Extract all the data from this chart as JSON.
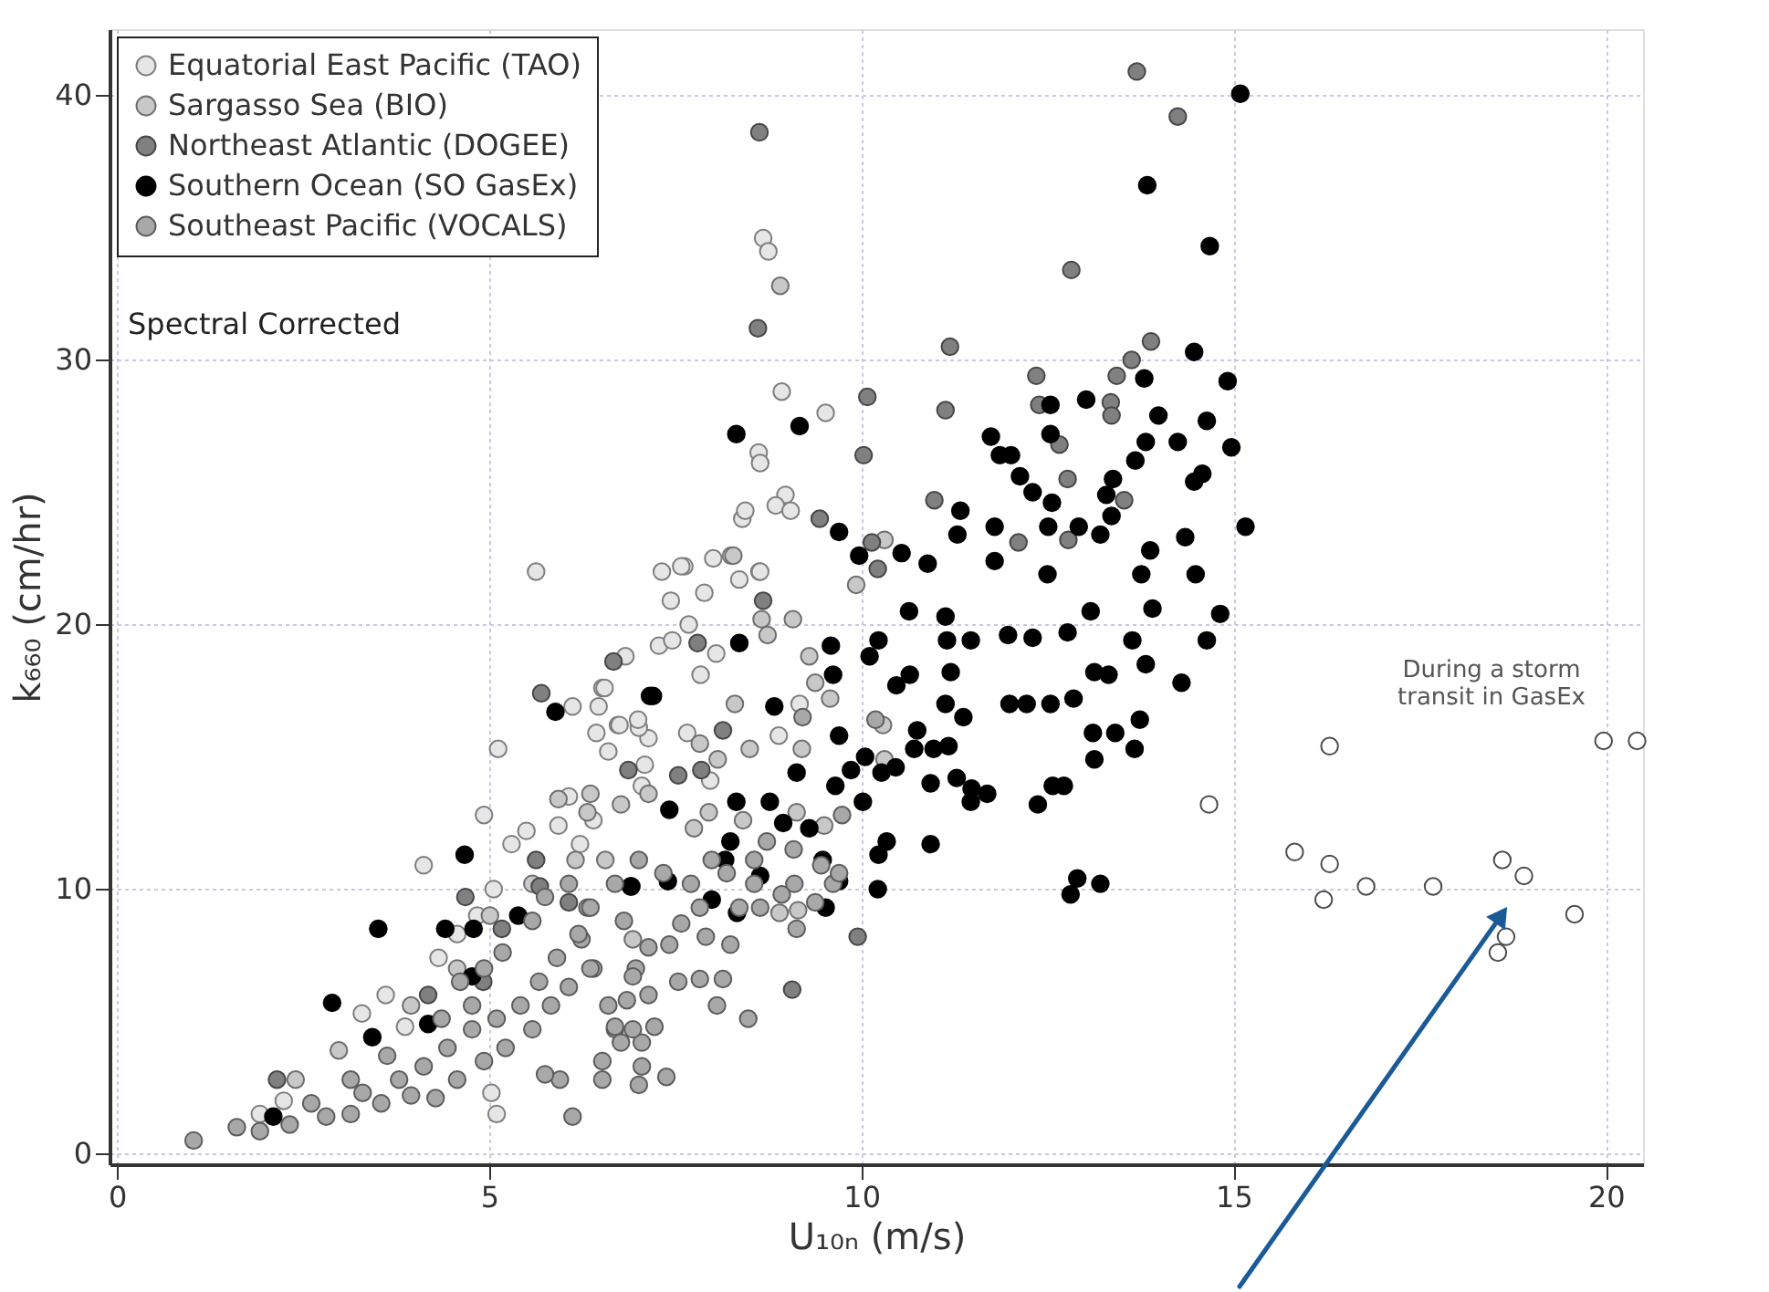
{
  "chart_data": {
    "type": "scatter",
    "xlabel": "U₁₀ₙ (m/s)",
    "ylabel": "k₆₆₀ (cm/hr)",
    "xlim": [
      -0.1,
      20.5
    ],
    "ylim": [
      -0.4,
      42.5
    ],
    "xticks": [
      0,
      5,
      10,
      15,
      20
    ],
    "yticks": [
      0,
      10,
      20,
      30,
      40
    ],
    "grid": true,
    "legend": "top left",
    "marker": "circle",
    "annotations": [
      "Spectral Corrected",
      "During a storm\ntransit in GasEx"
    ],
    "series": [
      {
        "name": "Equatorial East Pacific (TAO)",
        "color": "#e6e6e6",
        "x": [
          8.68,
          8.75,
          8.93,
          9.52,
          8.62,
          8.64,
          8.98,
          8.85,
          9.05,
          8.4,
          8.44,
          8.01,
          8.63,
          7.62,
          5.63,
          7.32,
          7.58,
          8.25,
          8.64,
          7.44,
          7.89,
          8.36,
          7.28,
          6.83,
          7.68,
          8.05,
          7.46,
          7.84,
          6.52,
          6.73,
          7.14,
          7.66,
          6.44,
          6.6,
          7.09,
          9.17,
          8.89,
          7.97,
          6.12,
          7.01,
          5.12,
          4.93,
          5.5,
          5.3,
          6.55,
          6.47,
          6.75,
          7.0,
          4.12,
          3.61,
          3.29,
          3.87,
          5.1,
          5.03,
          5.06,
          5.93,
          6.07,
          6.22,
          6.4,
          7.05,
          4.84,
          4.57,
          4.32,
          1.92,
          2.24
        ],
        "values": [
          34.6,
          34.1,
          28.8,
          28.0,
          26.5,
          26.1,
          24.9,
          24.5,
          24.3,
          24.0,
          24.3,
          22.5,
          22.0,
          22.2,
          22.0,
          22.0,
          22.2,
          22.6,
          22.0,
          20.9,
          21.2,
          21.7,
          19.2,
          18.8,
          20.0,
          18.9,
          19.4,
          18.1,
          17.6,
          16.2,
          15.7,
          15.9,
          15.9,
          15.2,
          14.7,
          17.0,
          15.8,
          14.1,
          16.9,
          16.1,
          15.3,
          12.8,
          12.2,
          11.7,
          17.6,
          16.9,
          16.2,
          16.4,
          10.9,
          6.0,
          5.3,
          4.8,
          1.5,
          2.3,
          10.0,
          12.4,
          13.5,
          11.7,
          12.6,
          13.9,
          9.0,
          8.3,
          7.4,
          1.5,
          2.0
        ]
      },
      {
        "name": "Sargasso Sea (BIO)",
        "color": "#c8c8c8",
        "x": [
          8.91,
          10.31,
          8.28,
          8.66,
          8.74,
          9.08,
          9.3,
          9.38,
          9.58,
          9.93,
          10.29,
          10.31,
          8.3,
          8.5,
          7.83,
          8.07,
          6.36,
          6.77,
          7.14,
          7.75,
          7.95,
          8.41,
          9.13,
          9.5,
          8.9,
          9.15,
          9.2,
          5.93,
          6.32,
          6.56,
          6.16,
          5.58,
          5.01,
          4.57,
          3.95,
          2.98,
          2.4,
          6.93
        ],
        "values": [
          32.8,
          23.2,
          22.6,
          20.2,
          19.6,
          20.2,
          18.8,
          17.8,
          17.2,
          21.5,
          16.2,
          14.9,
          17.0,
          15.3,
          15.5,
          14.9,
          13.6,
          13.2,
          13.6,
          12.3,
          12.9,
          12.6,
          12.9,
          12.4,
          9.1,
          9.2,
          15.3,
          13.4,
          12.9,
          11.1,
          11.1,
          10.2,
          9.0,
          7.0,
          5.6,
          3.9,
          2.8,
          8.1
        ]
      },
      {
        "name": "Northeast Atlantic (DOGEE)",
        "color": "#808080",
        "x": [
          13.7,
          14.25,
          12.82,
          8.63,
          8.61,
          11.19,
          13.89,
          13.63,
          13.43,
          12.35,
          10.08,
          12.39,
          13.35,
          13.36,
          11.13,
          10.03,
          12.66,
          12.77,
          13.53,
          10.98,
          9.44,
          10.14,
          12.11,
          12.78,
          10.22,
          6.67,
          8.68,
          7.8,
          9.95,
          9.07,
          8.14,
          6.87,
          7.54,
          7.85,
          5.7,
          4.68,
          5.63,
          5.17,
          4.18,
          2.15,
          6.07,
          4.92,
          5.68
        ],
        "values": [
          40.9,
          39.2,
          33.4,
          38.6,
          31.2,
          30.5,
          30.7,
          30.0,
          29.4,
          29.4,
          28.6,
          28.3,
          28.4,
          27.9,
          28.1,
          26.4,
          26.8,
          25.5,
          24.7,
          24.7,
          24.0,
          23.1,
          23.1,
          23.2,
          22.1,
          18.6,
          20.9,
          19.3,
          8.2,
          6.2,
          16.0,
          14.5,
          14.3,
          14.5,
          17.4,
          9.7,
          11.1,
          8.5,
          6.0,
          2.8,
          9.5,
          6.5,
          10.1
        ]
      },
      {
        "name": "Southern Ocean (SO GasEx)",
        "color": "#000000",
        "x": [
          15.09,
          13.84,
          14.68,
          14.47,
          13.8,
          14.92,
          12.54,
          13.02,
          13.99,
          14.64,
          8.32,
          9.17,
          11.74,
          12.54,
          13.82,
          14.25,
          14.97,
          11.86,
          12.01,
          13.68,
          12.13,
          13.38,
          14.47,
          14.58,
          12.3,
          13.29,
          12.56,
          11.33,
          13.36,
          9.7,
          11.29,
          11.79,
          12.51,
          12.92,
          13.21,
          15.16,
          14.35,
          9.97,
          10.54,
          10.89,
          11.79,
          13.88,
          13.76,
          14.49,
          12.5,
          5.89,
          7.16,
          4.67,
          3.51,
          4.41,
          4.79,
          2.89,
          5.39,
          6.9,
          4.18,
          3.43,
          2.1,
          4.77,
          7.2,
          8.36,
          8.83,
          9.59,
          10.23,
          10.64,
          11.13,
          11.15,
          11.47,
          11.97,
          12.3,
          12.77,
          13.08,
          13.91,
          14.82,
          14.64,
          13.64,
          9.62,
          10.11,
          10.47,
          10.65,
          11.2,
          11.13,
          11.37,
          11.99,
          12.22,
          12.54,
          12.85,
          13.13,
          13.32,
          13.82,
          14.3,
          13.74,
          13.41,
          13.11,
          13.67,
          13.13,
          10.75,
          10.71,
          10.97,
          11.17,
          9.7,
          10.05,
          9.86,
          10.27,
          10.46,
          10.93,
          11.28,
          11.48,
          11.69,
          11.47,
          12.37,
          12.57,
          12.72,
          10.02,
          9.65,
          9.13,
          8.77,
          8.32,
          9.3,
          8.95,
          8.24,
          10.34,
          10.23,
          10.93,
          8.17,
          8.64,
          9.48,
          9.7,
          10.22,
          9.52,
          8.33,
          6.91,
          7.4,
          7.42,
          7.99,
          12.9,
          12.81,
          13.21
        ],
        "values": [
          40.06,
          36.6,
          34.3,
          30.3,
          29.3,
          29.2,
          28.3,
          28.5,
          27.9,
          27.7,
          27.2,
          27.5,
          27.1,
          27.2,
          26.9,
          26.9,
          26.7,
          26.4,
          26.4,
          26.2,
          25.6,
          25.5,
          25.4,
          25.7,
          25.0,
          24.9,
          24.6,
          24.3,
          24.1,
          23.5,
          23.4,
          23.7,
          23.7,
          23.7,
          23.4,
          23.7,
          23.3,
          22.6,
          22.7,
          22.3,
          22.4,
          22.8,
          21.9,
          21.9,
          21.9,
          16.7,
          17.3,
          11.3,
          8.5,
          8.5,
          8.5,
          5.7,
          9.0,
          10.1,
          4.9,
          4.4,
          1.4,
          6.7,
          17.3,
          19.3,
          16.9,
          19.2,
          19.4,
          20.5,
          20.3,
          19.4,
          19.4,
          19.6,
          19.5,
          19.7,
          20.5,
          20.6,
          20.4,
          19.4,
          19.4,
          18.1,
          18.8,
          17.7,
          18.1,
          18.2,
          17.0,
          16.5,
          17.0,
          17.0,
          17.0,
          17.2,
          18.2,
          18.1,
          18.5,
          17.8,
          16.4,
          15.9,
          15.9,
          15.3,
          14.9,
          16.0,
          15.3,
          15.3,
          15.4,
          15.8,
          15.0,
          14.5,
          14.4,
          14.6,
          14.0,
          14.2,
          13.8,
          13.6,
          13.3,
          13.2,
          13.9,
          13.9,
          13.3,
          13.9,
          14.4,
          13.3,
          13.3,
          12.3,
          12.5,
          11.8,
          11.8,
          11.3,
          11.7,
          11.1,
          10.5,
          11.1,
          10.3,
          10.0,
          9.3,
          9.1,
          10.1,
          10.3,
          13.0,
          9.6,
          10.4,
          9.8,
          10.2
        ]
      },
      {
        "name": "Southeast Pacific (VOCALS)",
        "color": "#a8a8a8",
        "x": [
          1.03,
          1.61,
          1.92,
          2.32,
          2.61,
          2.81,
          3.14,
          3.3,
          3.55,
          3.79,
          3.95,
          4.12,
          4.28,
          4.44,
          4.57,
          4.77,
          4.93,
          5.1,
          5.22,
          5.42,
          5.58,
          5.67,
          5.83,
          5.91,
          5.95,
          6.12,
          5.75,
          6.07,
          6.24,
          6.4,
          6.52,
          6.52,
          6.69,
          6.81,
          6.85,
          6.97,
          7.01,
          7.05,
          4.36,
          4.61,
          4.93,
          5.18,
          4.77,
          5.58,
          5.75,
          6.07,
          6.32,
          3.63,
          3.14,
          7.38,
          7.05,
          6.77,
          7.22,
          6.93,
          6.69,
          8.48,
          8.06,
          7.83,
          8.14,
          7.54,
          7.14,
          6.93,
          7.42,
          7.14,
          7.91,
          8.24,
          7.83,
          7.58,
          8.36,
          8.64,
          8.93,
          9.13,
          9.38,
          9.62,
          9.1,
          8.56,
          8.19,
          8.56,
          8.73,
          7.99,
          7.71,
          7.34,
          7.01,
          6.69,
          6.36,
          6.2,
          6.36,
          6.6,
          9.09,
          9.46,
          9.7,
          9.74,
          10.19,
          9.21
        ],
        "values": [
          0.5,
          1.0,
          0.85,
          1.1,
          1.9,
          1.4,
          1.5,
          2.3,
          1.9,
          2.8,
          2.2,
          3.3,
          2.1,
          4.0,
          2.8,
          4.7,
          3.5,
          5.1,
          4.0,
          5.6,
          4.7,
          6.5,
          5.6,
          7.4,
          2.8,
          1.4,
          3.0,
          6.3,
          8.1,
          7.0,
          3.5,
          2.8,
          4.7,
          8.8,
          5.8,
          7.0,
          2.6,
          4.2,
          5.1,
          6.5,
          7.0,
          7.6,
          5.6,
          8.8,
          9.7,
          10.2,
          9.3,
          3.7,
          2.8,
          2.9,
          3.3,
          4.2,
          4.8,
          4.7,
          4.8,
          5.1,
          5.6,
          6.6,
          6.6,
          6.5,
          6.0,
          6.7,
          7.9,
          7.8,
          8.2,
          7.9,
          9.3,
          8.7,
          9.3,
          9.3,
          9.8,
          8.5,
          9.5,
          10.2,
          10.2,
          10.2,
          10.6,
          11.1,
          11.8,
          11.1,
          10.2,
          10.6,
          11.1,
          10.2,
          9.3,
          8.3,
          7.0,
          5.6,
          11.5,
          10.9,
          10.6,
          12.8,
          16.4,
          16.5
        ]
      },
      {
        "color": "#ffffff",
        "x": [
          16.29,
          15.82,
          16.29,
          16.21,
          16.78,
          17.68,
          18.61,
          18.9,
          18.66,
          18.55,
          19.58,
          19.97,
          20.42,
          14.67
        ],
        "values": [
          15.4,
          11.4,
          10.95,
          9.6,
          10.1,
          10.1,
          11.1,
          10.5,
          8.2,
          7.6,
          9.05,
          15.6,
          15.6,
          13.2
        ]
      }
    ]
  }
}
